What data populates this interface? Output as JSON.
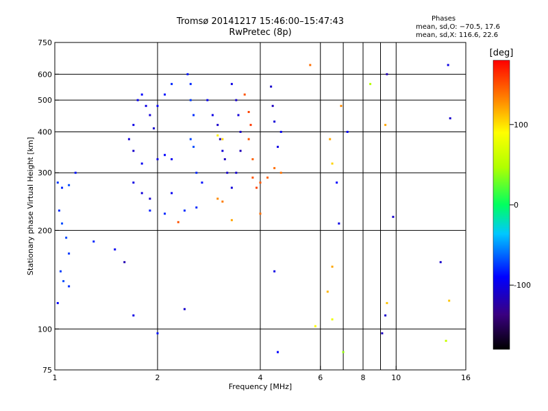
{
  "chart_data": {
    "type": "scatter",
    "title": "Tromsø 20141217 15:46:00–15:47:43",
    "subtitle": "RwPretec (8p)",
    "xlabel": "Frequency [MHz]",
    "ylabel": "Stationary phase Virtual Height [km]",
    "x_scale": "log",
    "y_scale": "log",
    "xlim": [
      1,
      16
    ],
    "ylim": [
      75,
      750
    ],
    "x_ticks": [
      1,
      2,
      4,
      6,
      8,
      10,
      16
    ],
    "y_ticks": [
      75,
      100,
      200,
      300,
      400,
      500,
      600,
      750
    ],
    "x_grid": [
      2,
      4,
      6,
      7,
      8,
      9,
      10
    ],
    "y_grid": [
      100,
      200,
      300,
      400,
      500,
      600
    ],
    "grid": true,
    "colorbar": {
      "label": "[deg]",
      "range": [
        -180,
        180
      ],
      "ticks": [
        100,
        0,
        -100
      ],
      "colormap": "rainbow"
    },
    "phases": {
      "heading": "Phases",
      "o_line": "mean, sd,O: −70.5, 17.6",
      "x_line": "mean, sd,X: 116.6, 22.6"
    },
    "series": [
      {
        "values": [
          [
            1.02,
            280,
            -75
          ],
          [
            1.05,
            270,
            -80
          ],
          [
            1.1,
            275,
            -70
          ],
          [
            1.15,
            300,
            -85
          ],
          [
            1.03,
            230,
            -78
          ],
          [
            1.05,
            210,
            -70
          ],
          [
            1.08,
            190,
            -72
          ],
          [
            1.1,
            170,
            -76
          ],
          [
            1.04,
            150,
            -74
          ],
          [
            1.06,
            140,
            -70
          ],
          [
            1.1,
            135,
            -78
          ],
          [
            1.02,
            120,
            -90
          ],
          [
            1.3,
            185,
            -80
          ],
          [
            1.5,
            175,
            -95
          ],
          [
            1.6,
            160,
            -120
          ],
          [
            1.7,
            110,
            -100
          ],
          [
            1.9,
            230,
            -82
          ],
          [
            2.1,
            225,
            -80
          ],
          [
            2.4,
            230,
            -78
          ],
          [
            2.6,
            235,
            -80
          ],
          [
            2.4,
            115,
            -110
          ],
          [
            2.0,
            97,
            -85
          ],
          [
            1.75,
            500,
            -95
          ],
          [
            1.8,
            520,
            -90
          ],
          [
            1.85,
            480,
            -100
          ],
          [
            1.9,
            450,
            -105
          ],
          [
            1.95,
            410,
            -110
          ],
          [
            2.0,
            480,
            -90
          ],
          [
            2.1,
            520,
            -85
          ],
          [
            2.2,
            560,
            -80
          ],
          [
            1.7,
            420,
            -100
          ],
          [
            1.65,
            380,
            -105
          ],
          [
            1.7,
            350,
            -110
          ],
          [
            1.8,
            320,
            -95
          ],
          [
            2.0,
            330,
            -100
          ],
          [
            2.1,
            340,
            -90
          ],
          [
            2.2,
            330,
            -95
          ],
          [
            1.7,
            280,
            -100
          ],
          [
            1.8,
            260,
            -105
          ],
          [
            1.9,
            250,
            -110
          ],
          [
            2.2,
            260,
            -95
          ],
          [
            2.45,
            600,
            -85
          ],
          [
            2.5,
            560,
            -80
          ],
          [
            2.5,
            500,
            -75
          ],
          [
            2.55,
            450,
            -78
          ],
          [
            2.5,
            380,
            -72
          ],
          [
            2.55,
            360,
            -70
          ],
          [
            2.6,
            300,
            -80
          ],
          [
            2.7,
            280,
            -85
          ],
          [
            2.8,
            500,
            -95
          ],
          [
            2.9,
            450,
            -100
          ],
          [
            3.0,
            420,
            -110
          ],
          [
            3.05,
            380,
            -120
          ],
          [
            3.1,
            350,
            -105
          ],
          [
            3.15,
            330,
            -115
          ],
          [
            3.2,
            300,
            -110
          ],
          [
            3.0,
            390,
            95
          ],
          [
            3.1,
            380,
            105
          ],
          [
            3.0,
            250,
            130
          ],
          [
            3.1,
            245,
            135
          ],
          [
            3.3,
            560,
            -100
          ],
          [
            3.4,
            500,
            -110
          ],
          [
            3.45,
            450,
            -105
          ],
          [
            3.5,
            400,
            -112
          ],
          [
            3.5,
            350,
            -118
          ],
          [
            3.4,
            300,
            -108
          ],
          [
            3.3,
            270,
            -105
          ],
          [
            3.6,
            520,
            150
          ],
          [
            3.7,
            460,
            155
          ],
          [
            3.75,
            420,
            160
          ],
          [
            3.7,
            380,
            150
          ],
          [
            3.8,
            330,
            145
          ],
          [
            3.8,
            290,
            150
          ],
          [
            3.9,
            270,
            155
          ],
          [
            4.0,
            280,
            148
          ],
          [
            4.2,
            290,
            145
          ],
          [
            4.4,
            310,
            140
          ],
          [
            4.6,
            300,
            138
          ],
          [
            4.3,
            550,
            -110
          ],
          [
            4.35,
            480,
            -115
          ],
          [
            4.4,
            430,
            -105
          ],
          [
            4.5,
            360,
            -100
          ],
          [
            4.6,
            400,
            -95
          ],
          [
            5.6,
            640,
            140
          ],
          [
            6.4,
            380,
            120
          ],
          [
            6.5,
            320,
            105
          ],
          [
            6.7,
            280,
            -90
          ],
          [
            6.9,
            480,
            130
          ],
          [
            7.2,
            400,
            -90
          ],
          [
            8.4,
            560,
            50
          ],
          [
            9.3,
            420,
            120
          ],
          [
            9.4,
            600,
            -120
          ],
          [
            9.8,
            220,
            -110
          ],
          [
            14.2,
            640,
            -100
          ],
          [
            14.4,
            440,
            -110
          ],
          [
            6.8,
            210,
            -100
          ],
          [
            6.5,
            155,
            120
          ],
          [
            6.3,
            130,
            115
          ],
          [
            9.3,
            110,
            -110
          ],
          [
            9.1,
            97,
            -115
          ],
          [
            5.8,
            102,
            90
          ],
          [
            6.5,
            107,
            80
          ],
          [
            7.0,
            85,
            40
          ],
          [
            9.4,
            120,
            110
          ],
          [
            4.4,
            150,
            -100
          ],
          [
            4.5,
            85,
            -90
          ],
          [
            14.0,
            92,
            60
          ],
          [
            13.5,
            160,
            -110
          ],
          [
            14.3,
            122,
            110
          ],
          [
            2.3,
            212,
            150
          ],
          [
            3.3,
            215,
            120
          ],
          [
            4.0,
            225,
            140
          ]
        ]
      }
    ]
  }
}
